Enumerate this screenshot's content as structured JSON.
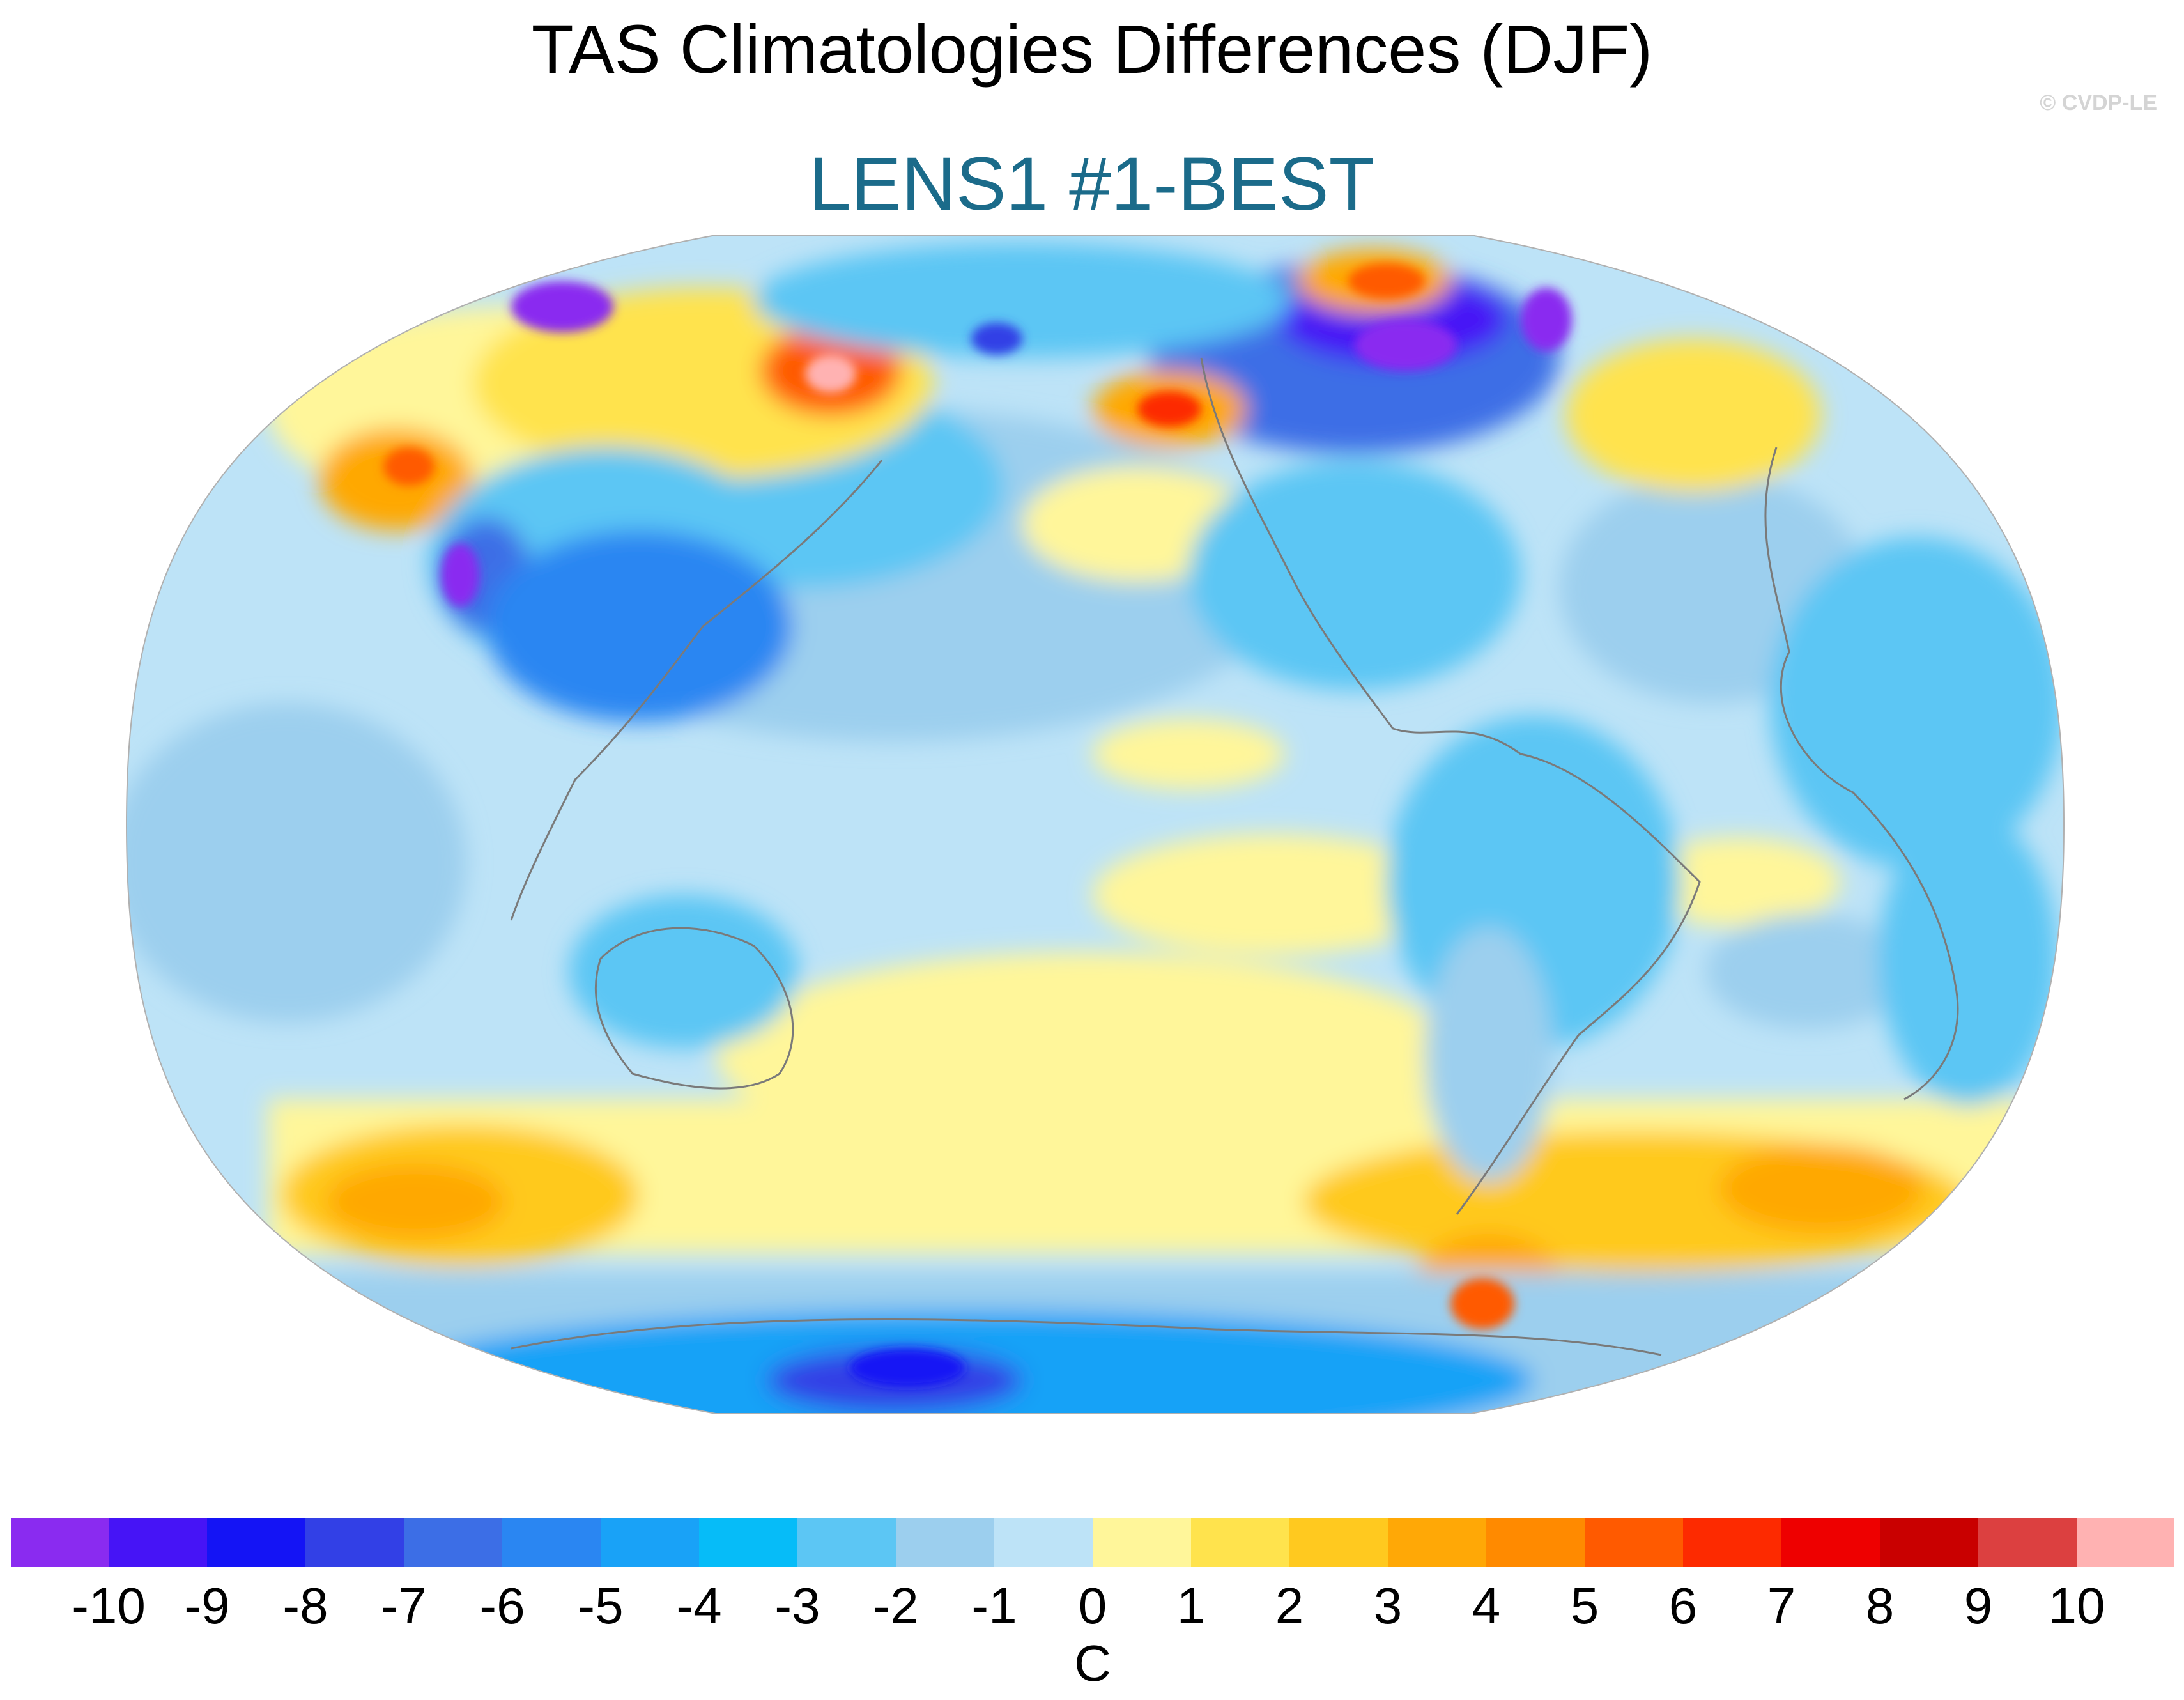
{
  "title": "TAS Climatologies Differences (DJF)",
  "subtitle": "LENS1 #1-BEST",
  "credit": "© CVDP-LE",
  "colors": {
    "subtitle": "#1b6b8a",
    "credit": "#d4d4d4",
    "coastline": "#7a7a7a"
  },
  "colorbar": {
    "unit": "C",
    "tick_labels": [
      "-10",
      "-9",
      "-8",
      "-7",
      "-6",
      "-5",
      "-4",
      "-3",
      "-2",
      "-1",
      "0",
      "1",
      "2",
      "3",
      "4",
      "5",
      "6",
      "7",
      "8",
      "9",
      "10"
    ],
    "colors": [
      "#8a2bf0",
      "#4614f6",
      "#1414f5",
      "#3240e6",
      "#3c6ee6",
      "#2a86f2",
      "#19a2f7",
      "#06bcf8",
      "#5cc6f4",
      "#9ccfee",
      "#bde3f7",
      "#fff69a",
      "#ffe34d",
      "#ffc91f",
      "#ffa806",
      "#ff8a00",
      "#ff5a00",
      "#fd2a00",
      "#ee0000",
      "#c90000",
      "#dc4040",
      "#ffb2b2"
    ]
  },
  "map_regions": {
    "Pacific-North": "-1",
    "Pacific-East-Equatorial": "1",
    "Southern-Ocean-Band": "3",
    "Siberia": "6",
    "Canada-North": "-9",
    "Antarctica": "-5"
  }
}
